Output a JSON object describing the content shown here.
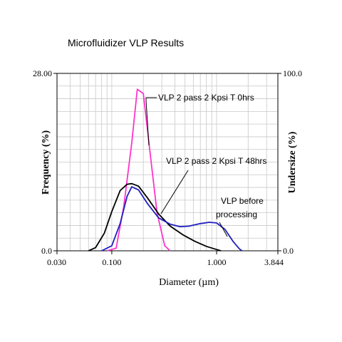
{
  "chart_data": {
    "type": "line",
    "title": "Microfluidizer VLP Results",
    "xlabel": "Diameter (µm)",
    "ylabel": "Frequency (%)",
    "y2label": "Undersize (%)",
    "xscale": "log",
    "xlim": [
      0.03,
      3.844
    ],
    "ylim": [
      0,
      28
    ],
    "y2lim": [
      0,
      100
    ],
    "x_ticks": [
      {
        "value": 0.03,
        "label": "0.030"
      },
      {
        "value": 0.1,
        "label": "0.100"
      },
      {
        "value": 1.0,
        "label": "1.000"
      },
      {
        "value": 3.844,
        "label": "3.844"
      }
    ],
    "y_ticks": [
      {
        "value": 0,
        "label": "0.0"
      },
      {
        "value": 28,
        "label": "28.00"
      }
    ],
    "y2_ticks": [
      {
        "value": 0,
        "label": "0.0"
      },
      {
        "value": 100,
        "label": "100.0"
      }
    ],
    "grid": true,
    "series": [
      {
        "color": "#ff33cc",
        "points": [
          [
            0.09,
            0
          ],
          [
            0.11,
            0.4
          ],
          [
            0.13,
            7
          ],
          [
            0.155,
            17
          ],
          [
            0.175,
            25.5
          ],
          [
            0.2,
            24.8
          ],
          [
            0.23,
            16
          ],
          [
            0.27,
            6
          ],
          [
            0.32,
            0.8
          ],
          [
            0.36,
            0
          ]
        ]
      },
      {
        "color": "#000000",
        "points": [
          [
            0.06,
            0
          ],
          [
            0.07,
            0.5
          ],
          [
            0.085,
            2.8
          ],
          [
            0.1,
            6.2
          ],
          [
            0.12,
            9.5
          ],
          [
            0.14,
            10.5
          ],
          [
            0.155,
            10.6
          ],
          [
            0.18,
            10.2
          ],
          [
            0.22,
            8.3
          ],
          [
            0.28,
            5.8
          ],
          [
            0.36,
            3.9
          ],
          [
            0.48,
            2.5
          ],
          [
            0.62,
            1.5
          ],
          [
            0.8,
            0.7
          ],
          [
            1.0,
            0.2
          ],
          [
            1.1,
            0
          ]
        ]
      },
      {
        "color": "#1f1fbf",
        "points": [
          [
            0.08,
            0
          ],
          [
            0.1,
            0.8
          ],
          [
            0.12,
            4.3
          ],
          [
            0.14,
            8.6
          ],
          [
            0.155,
            10.1
          ],
          [
            0.18,
            9.6
          ],
          [
            0.22,
            7.4
          ],
          [
            0.28,
            5.2
          ],
          [
            0.36,
            4.2
          ],
          [
            0.45,
            3.8
          ],
          [
            0.55,
            3.9
          ],
          [
            0.7,
            4.3
          ],
          [
            0.85,
            4.5
          ],
          [
            1.0,
            4.4
          ],
          [
            1.2,
            3.4
          ],
          [
            1.45,
            1.4
          ],
          [
            1.65,
            0.3
          ],
          [
            1.75,
            0
          ]
        ]
      }
    ],
    "annotations": [
      {
        "text": "VLP 2 pass 2 Kpsi T 0hrs"
      },
      {
        "text": "VLP 2 pass 2 Kpsi T 48hrs"
      },
      {
        "text": "VLP before"
      },
      {
        "text": "processing"
      }
    ]
  }
}
